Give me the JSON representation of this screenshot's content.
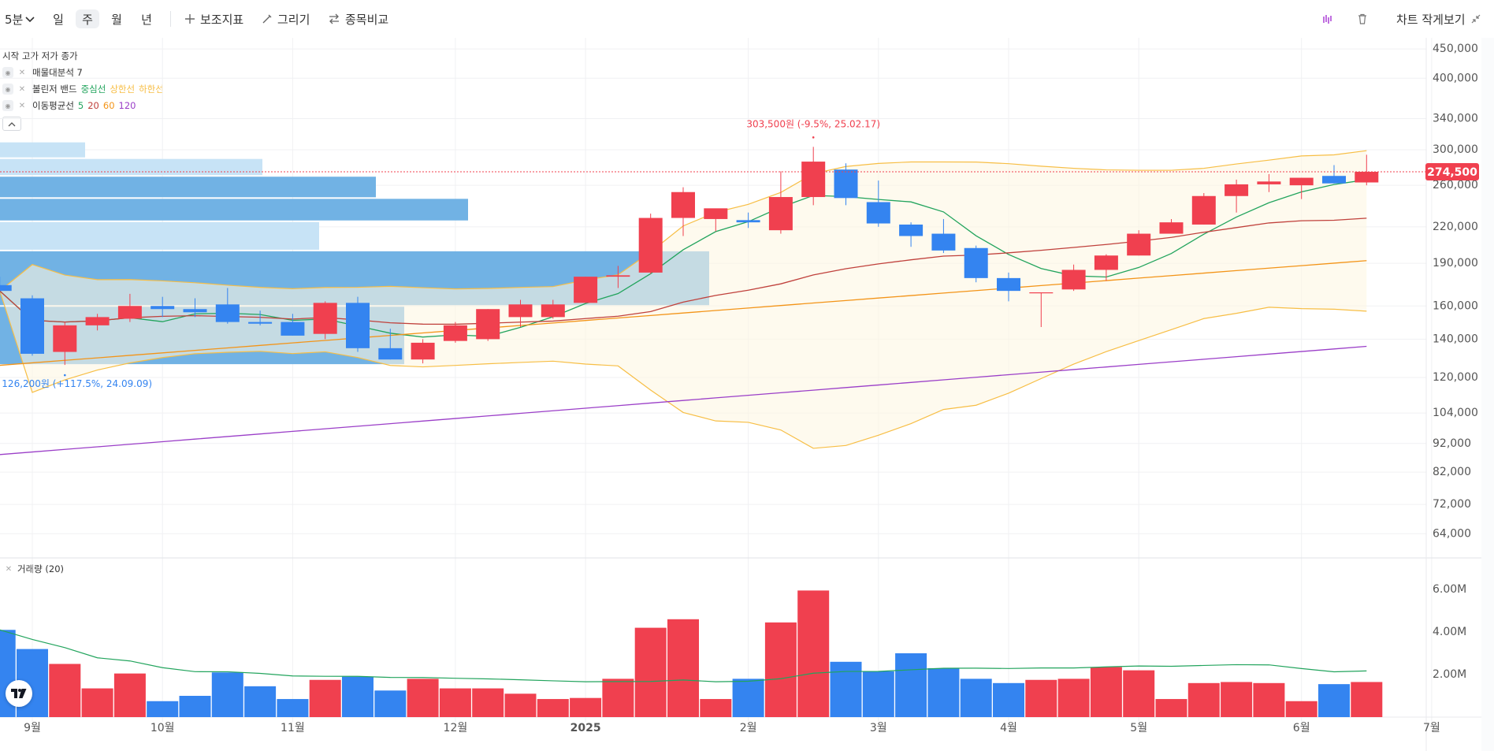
{
  "toolbar": {
    "interval": "5분",
    "periods": [
      "일",
      "주",
      "월",
      "년"
    ],
    "active_period": "주",
    "indicator_label": "보조지표",
    "draw_label": "그리기",
    "compare_label": "종목비교",
    "small_view_label": "차트 작게보기"
  },
  "legend": {
    "ohlc": "시작 고가 저가 종가",
    "volume_profile": "매물대분석 7",
    "bollinger_name": "볼린저 밴드",
    "bollinger_mid": "중심선",
    "bollinger_upper": "상한선",
    "bollinger_lower": "하한선",
    "ma_name": "이동평균선",
    "ma_periods": [
      "5",
      "20",
      "60",
      "120"
    ],
    "volume": "거래량 (20)"
  },
  "annotations": {
    "high": "303,500원 (-9.5%, 25.02.17)",
    "low": "126,200원 (+117.5%, 24.09.09)",
    "current_price": "274,500"
  },
  "colors": {
    "up": "#f0404f",
    "down": "#3484f0",
    "ma5": "#22a45d",
    "ma20": "#c0413c",
    "ma60": "#f39418",
    "ma120": "#9b3fc8",
    "bollinger": "#f7be45",
    "profile": "#69aee3"
  },
  "chart_data": {
    "type": "candlestick",
    "interval": "주",
    "x": [
      "24.08.26",
      "24.09.02",
      "24.09.09",
      "24.09.16",
      "24.09.23",
      "24.09.30",
      "24.10.07",
      "24.10.14",
      "24.10.21",
      "24.10.28",
      "24.11.04",
      "24.11.11",
      "24.11.18",
      "24.11.25",
      "24.12.02",
      "24.12.09",
      "24.12.16",
      "24.12.23",
      "24.12.30",
      "25.01.06",
      "25.01.13",
      "25.01.20",
      "25.01.27",
      "25.02.03",
      "25.02.10",
      "25.02.17",
      "25.02.24",
      "25.03.03",
      "25.03.10",
      "25.03.17",
      "25.03.24",
      "25.03.31",
      "25.04.07",
      "25.04.14",
      "25.04.21",
      "25.04.28",
      "25.05.05",
      "25.05.12",
      "25.05.19",
      "25.05.26",
      "25.06.02",
      "25.06.09",
      "25.06.16"
    ],
    "ohlc": [
      [
        174000,
        180000,
        168000,
        170000
      ],
      [
        165000,
        167000,
        131000,
        132000
      ],
      [
        133000,
        150000,
        126200,
        148000
      ],
      [
        148000,
        155000,
        145000,
        153000
      ],
      [
        152000,
        168000,
        150000,
        160000
      ],
      [
        160000,
        166000,
        153000,
        158000
      ],
      [
        158000,
        165000,
        153000,
        156000
      ],
      [
        161000,
        172000,
        149000,
        150000
      ],
      [
        150000,
        157000,
        148000,
        149000
      ],
      [
        150000,
        155000,
        142000,
        142000
      ],
      [
        143000,
        163000,
        140000,
        162000
      ],
      [
        162000,
        166000,
        133000,
        135000
      ],
      [
        135000,
        146000,
        129000,
        129000
      ],
      [
        129000,
        140000,
        127000,
        138000
      ],
      [
        139000,
        150000,
        138000,
        148000
      ],
      [
        140000,
        158000,
        139000,
        158000
      ],
      [
        153000,
        164000,
        147000,
        161000
      ],
      [
        153000,
        164000,
        152000,
        161000
      ],
      [
        162000,
        180000,
        162000,
        180000
      ],
      [
        180000,
        188000,
        172000,
        181000
      ],
      [
        183000,
        232000,
        182000,
        228000
      ],
      [
        228000,
        258000,
        212000,
        253000
      ],
      [
        227000,
        236000,
        216000,
        237000
      ],
      [
        226000,
        233000,
        219000,
        224000
      ],
      [
        217000,
        275000,
        214000,
        248000
      ],
      [
        248000,
        303500,
        240000,
        286000
      ],
      [
        277000,
        284000,
        240000,
        247000
      ],
      [
        243000,
        265000,
        220000,
        223000
      ],
      [
        222000,
        224000,
        203000,
        212000
      ],
      [
        214000,
        227000,
        198000,
        200000
      ],
      [
        202000,
        204000,
        176000,
        179000
      ],
      [
        179000,
        183000,
        163000,
        170000
      ],
      [
        169000,
        169000,
        147000,
        169000
      ],
      [
        171000,
        189000,
        170000,
        185000
      ],
      [
        185000,
        197000,
        177000,
        196000
      ],
      [
        196000,
        217000,
        196000,
        214000
      ],
      [
        214000,
        227000,
        214000,
        224000
      ],
      [
        222000,
        252000,
        222000,
        249000
      ],
      [
        249000,
        266000,
        233000,
        261000
      ],
      [
        261000,
        272000,
        253000,
        264000
      ],
      [
        260000,
        268000,
        246000,
        268000
      ],
      [
        270000,
        282000,
        262000,
        262000
      ],
      [
        263000,
        294000,
        260000,
        274500
      ]
    ],
    "volume": [
      4.1,
      3.2,
      2.5,
      1.35,
      2.05,
      0.75,
      1.0,
      2.1,
      1.45,
      0.85,
      1.75,
      1.9,
      1.25,
      1.8,
      1.35,
      1.35,
      1.1,
      0.85,
      0.9,
      1.8,
      4.2,
      4.6,
      0.85,
      1.8,
      4.45,
      5.95,
      2.6,
      2.15,
      3.0,
      2.3,
      1.8,
      1.6,
      1.75,
      1.8,
      2.35,
      2.2,
      0.85,
      1.6,
      1.65,
      1.6,
      0.75,
      1.55,
      1.65
    ],
    "volume_unit": "M",
    "y_ticks": [
      "64,000",
      "72,000",
      "82,000",
      "92,000",
      "104,000",
      "120,000",
      "140,000",
      "160,000",
      "190,000",
      "220,000",
      "260,000",
      "300,000",
      "340,000",
      "400,000",
      "450,000"
    ],
    "volume_ticks": [
      "2.00M",
      "4.00M",
      "6.00M"
    ],
    "x_labels": [
      "9월",
      "10월",
      "11월",
      "12월",
      "2025",
      "2월",
      "3월",
      "4월",
      "5월",
      "6월",
      "7월"
    ],
    "x_label_dates": [
      "24.09.02",
      "24.09.30",
      "24.10.28",
      "24.12.02",
      "24.12.30",
      "25.02.03",
      "25.03.03",
      "25.03.31",
      "25.04.28",
      "25.06.02",
      "25.06.30"
    ],
    "volume_profile": [
      {
        "from": 290000,
        "to": 310000,
        "weight": 0.12
      },
      {
        "from": 270000,
        "to": 290000,
        "weight": 0.37
      },
      {
        "from": 247000,
        "to": 270000,
        "weight": 0.53
      },
      {
        "from": 225000,
        "to": 247000,
        "weight": 0.66
      },
      {
        "from": 200000,
        "to": 225000,
        "weight": 0.45
      },
      {
        "from": 160000,
        "to": 200000,
        "weight": 1.0
      },
      {
        "from": 126200,
        "to": 160000,
        "weight": 0.57
      }
    ],
    "ylim": [
      60000,
      470000
    ],
    "ylog": true
  }
}
